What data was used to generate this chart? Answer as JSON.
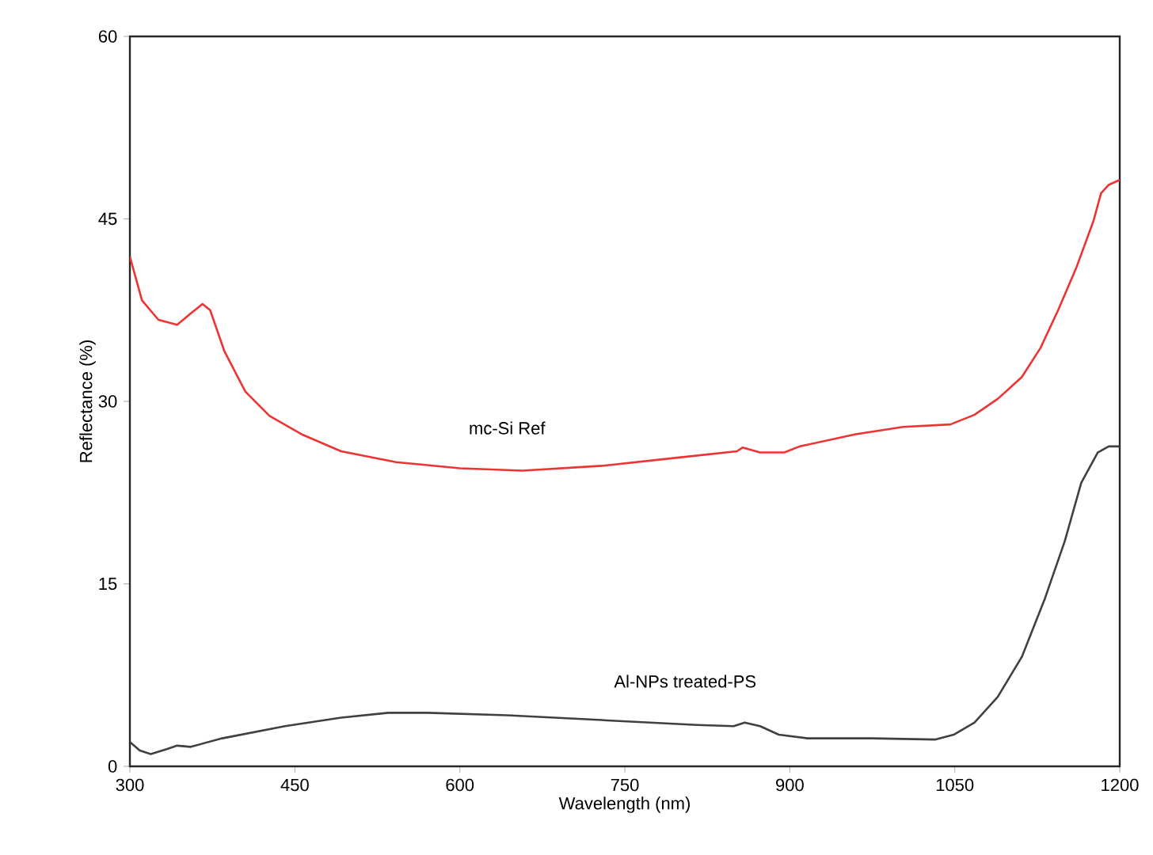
{
  "chart_data": {
    "type": "line",
    "xlabel": "Wavelength (nm)",
    "ylabel": "Reflectance (%)",
    "xlim": [
      300,
      1200
    ],
    "ylim": [
      0,
      60
    ],
    "xticks": [
      300,
      450,
      600,
      750,
      900,
      1050,
      1200
    ],
    "yticks": [
      0,
      15,
      30,
      45,
      60
    ],
    "grid": false,
    "marker": "none",
    "line_style": "solid",
    "series": [
      {
        "name": "mc-Si Ref",
        "color": "#ee3333",
        "x": [
          300,
          311,
          326,
          343,
          355,
          366,
          373,
          386,
          405,
          427,
          456,
          492,
          542,
          600,
          657,
          729,
          801,
          852,
          857,
          873,
          895,
          909,
          960,
          1003,
          1046,
          1068,
          1089,
          1111,
          1128,
          1144,
          1161,
          1176,
          1183,
          1190,
          1200
        ],
        "values": [
          41.9,
          38.3,
          36.7,
          36.3,
          37.2,
          38.0,
          37.5,
          34.1,
          30.8,
          28.8,
          27.3,
          25.9,
          25.0,
          24.5,
          24.3,
          24.7,
          25.4,
          25.9,
          26.2,
          25.8,
          25.8,
          26.3,
          27.3,
          27.9,
          28.1,
          28.9,
          30.2,
          32.0,
          34.4,
          37.5,
          41.1,
          44.8,
          47.1,
          47.8,
          48.2
        ]
      },
      {
        "name": "Al-NPs treated-PS",
        "color": "#404040",
        "x": [
          300,
          309,
          319,
          333,
          343,
          355,
          384,
          441,
          492,
          535,
          571,
          643,
          729,
          816,
          849,
          859,
          873,
          890,
          916,
          974,
          1032,
          1049,
          1068,
          1089,
          1111,
          1132,
          1150,
          1165,
          1180,
          1190,
          1200
        ],
        "values": [
          2.0,
          1.3,
          1.0,
          1.4,
          1.7,
          1.6,
          2.3,
          3.3,
          4.0,
          4.4,
          4.4,
          4.2,
          3.8,
          3.4,
          3.3,
          3.6,
          3.3,
          2.6,
          2.3,
          2.3,
          2.2,
          2.6,
          3.6,
          5.7,
          9.0,
          13.8,
          18.5,
          23.3,
          25.8,
          26.3,
          26.3
        ]
      }
    ]
  }
}
